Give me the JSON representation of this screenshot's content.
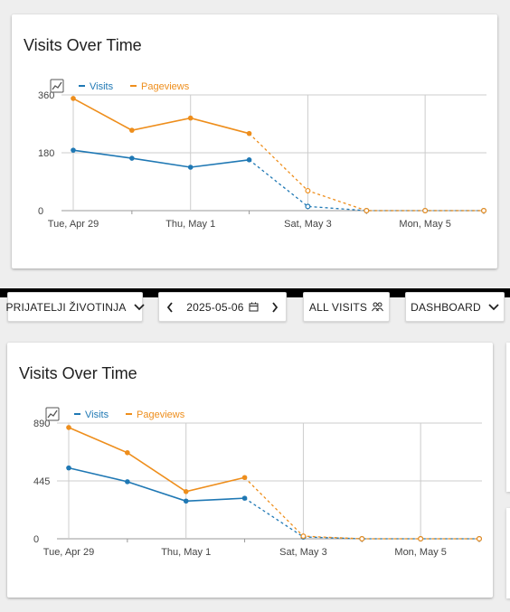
{
  "controls": {
    "site_label": "PRIJATELJI ŽIVOTINJA",
    "date_value": "2025-05-06",
    "segment_label": "ALL VISITS",
    "dashboard_label": "DASHBOARD"
  },
  "chart_data": [
    {
      "type": "line",
      "title": "Visits Over Time",
      "x_ticks": [
        "Tue, Apr 29",
        "Thu, May 1",
        "Sat, May 3",
        "Mon, May 5"
      ],
      "x": [
        "2025-04-29",
        "2025-04-30",
        "2025-05-01",
        "2025-05-02",
        "2025-05-03",
        "2025-05-04",
        "2025-05-05",
        "2025-05-06"
      ],
      "y_ticks": [
        "0",
        "180",
        "360"
      ],
      "ylim": [
        0,
        360
      ],
      "legend": [
        "Visits",
        "Pageviews"
      ],
      "legend_position": "top-left",
      "series": [
        {
          "name": "Visits",
          "color": "#1f78b4",
          "values": [
            188,
            163,
            135,
            158,
            13,
            0,
            0,
            0
          ]
        },
        {
          "name": "Pageviews",
          "color": "#ee8e1c",
          "values": [
            349,
            250,
            288,
            240,
            62,
            0,
            0,
            0
          ]
        }
      ],
      "dashed_from_index": 4,
      "grid": true
    },
    {
      "type": "line",
      "title": "Visits Over Time",
      "x_ticks": [
        "Tue, Apr 29",
        "Thu, May 1",
        "Sat, May 3",
        "Mon, May 5"
      ],
      "x": [
        "2025-04-29",
        "2025-04-30",
        "2025-05-01",
        "2025-05-02",
        "2025-05-03",
        "2025-05-04",
        "2025-05-05",
        "2025-05-06"
      ],
      "y_ticks": [
        "0",
        "445",
        "890"
      ],
      "ylim": [
        0,
        890
      ],
      "legend": [
        "Visits",
        "Pageviews"
      ],
      "legend_position": "top-left",
      "series": [
        {
          "name": "Visits",
          "color": "#1f78b4",
          "values": [
            545,
            439,
            290,
            312,
            14,
            0,
            0,
            0
          ]
        },
        {
          "name": "Pageviews",
          "color": "#ee8e1c",
          "values": [
            856,
            662,
            363,
            471,
            20,
            0,
            0,
            0
          ]
        }
      ],
      "dashed_from_index": 4,
      "grid": true
    }
  ]
}
